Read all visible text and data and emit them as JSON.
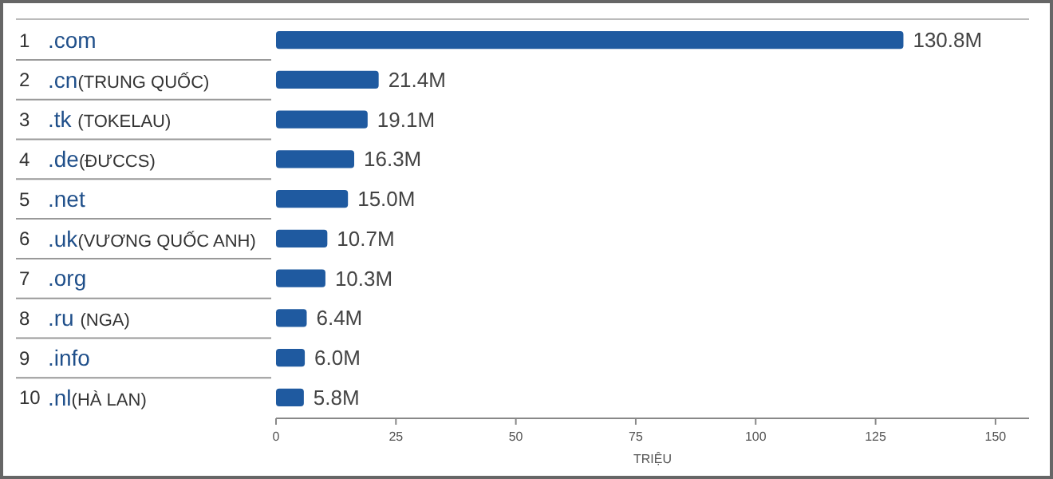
{
  "chart_data": {
    "type": "bar",
    "orientation": "horizontal",
    "xlabel": "TRIỆU",
    "categories": [
      "1 .com",
      "2 .cn(TRUNG QUỐC)",
      "3 .tk (TOKELAU)",
      "4 .de(ĐƯCCS)",
      "5 .net",
      "6 .uk(VƯƠNG QUỐC ANH)",
      "7 .org",
      "8 .ru (NGA)",
      "9 .info",
      "10 .nl(HÀ LAN)"
    ],
    "values": [
      130.8,
      21.4,
      19.1,
      16.3,
      15.0,
      10.7,
      10.3,
      6.4,
      6.0,
      5.8
    ],
    "value_labels": [
      "130.8M",
      "21.4M",
      "19.1M",
      "16.3M",
      "15.0M",
      "10.7M",
      "10.3M",
      "6.4M",
      "6.0M",
      "5.8M"
    ],
    "color": "#1f5aa0",
    "xlim": [
      0,
      157
    ],
    "xticks": [
      0,
      25,
      50,
      75,
      100,
      125,
      150
    ],
    "grid": false
  }
}
